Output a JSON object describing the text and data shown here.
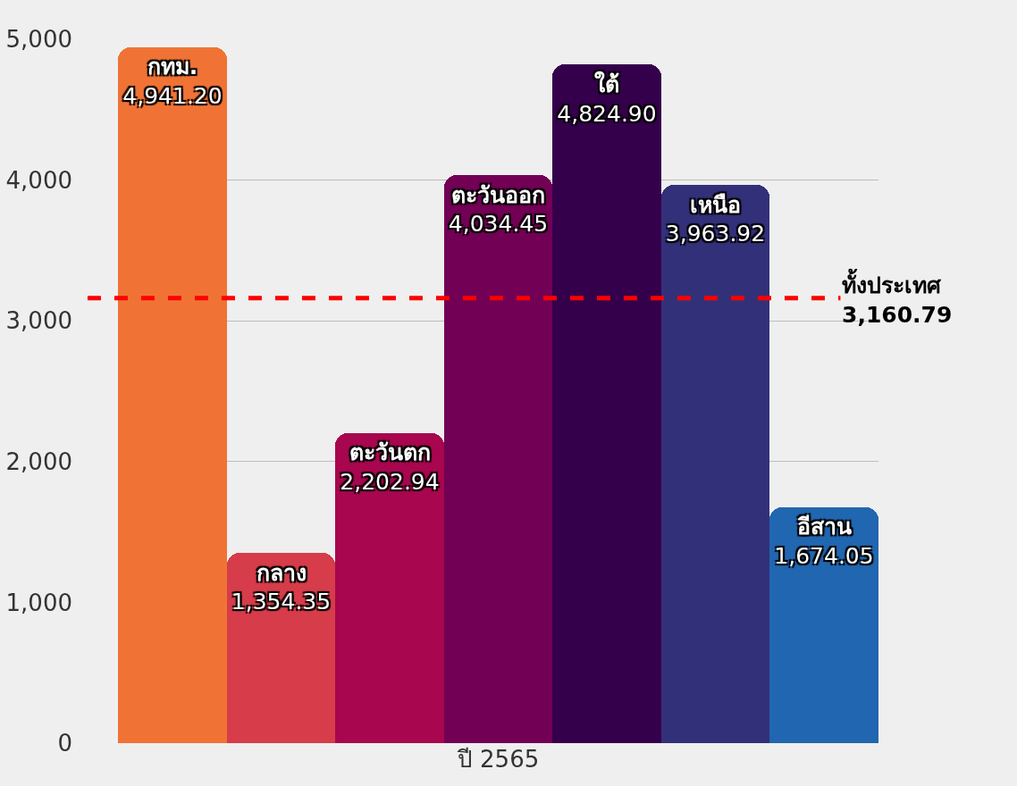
{
  "chart_data": {
    "type": "bar",
    "categories": [
      "ปี 2565"
    ],
    "series": [
      {
        "name": "กทม.",
        "color": "#f07335",
        "values": [
          4941.2
        ],
        "value_labels": [
          "4,941.20"
        ]
      },
      {
        "name": "กลาง",
        "color": "#d63c4a",
        "values": [
          1354.35
        ],
        "value_labels": [
          "1,354.35"
        ]
      },
      {
        "name": "ตะวันตก",
        "color": "#a8064f",
        "values": [
          2202.94
        ],
        "value_labels": [
          "2,202.94"
        ]
      },
      {
        "name": "ตะวันออก",
        "color": "#720055",
        "values": [
          4034.45
        ],
        "value_labels": [
          "4,034.45"
        ]
      },
      {
        "name": "ใต้",
        "color": "#35004b",
        "values": [
          4824.9
        ],
        "value_labels": [
          "4,824.90"
        ]
      },
      {
        "name": "เหนือ",
        "color": "#33307a",
        "values": [
          3963.92
        ],
        "value_labels": [
          "3,963.92"
        ]
      },
      {
        "name": "อีสาน",
        "color": "#2166b0",
        "values": [
          1674.05
        ],
        "value_labels": [
          "1,674.05"
        ]
      }
    ],
    "ylim": [
      0,
      5000
    ],
    "yticks": [
      0,
      {
        "value": 1000,
        "label": "1,000"
      },
      {
        "value": 2000,
        "label": "2,000"
      },
      {
        "value": 3000,
        "label": "3,000"
      },
      {
        "value": 4000,
        "label": "4,000"
      },
      {
        "value": 5000,
        "label": "5,000"
      }
    ],
    "grid": "y",
    "legend": false,
    "ref_lines": [
      {
        "axis": "y",
        "value": 3160.79,
        "label": "ทั้งประเทศ\n3,160.79",
        "color": "#ff0000",
        "line_style": "dashed"
      }
    ]
  }
}
